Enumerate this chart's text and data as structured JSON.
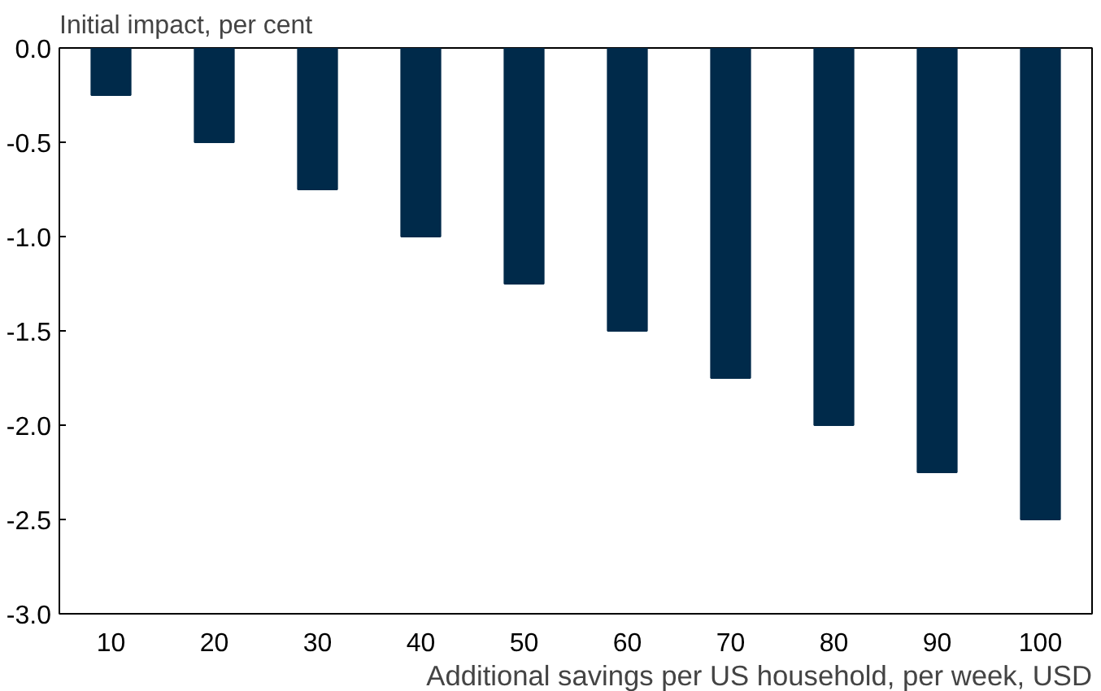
{
  "chart_data": {
    "type": "bar",
    "title": "Initial impact, per cent",
    "xlabel": "Additional savings per US household, per week, USD",
    "categories": [
      "10",
      "20",
      "30",
      "40",
      "50",
      "60",
      "70",
      "80",
      "90",
      "100"
    ],
    "values": [
      -0.25,
      -0.5,
      -0.75,
      -1.0,
      -1.25,
      -1.5,
      -1.75,
      -2.0,
      -2.25,
      -2.5
    ],
    "color": "#002a4a",
    "ylim": [
      -3,
      0
    ],
    "yticks": [
      {
        "value": -3,
        "label": "-3.0"
      },
      {
        "value": -2.5,
        "label": "-2.5"
      },
      {
        "value": -2,
        "label": "-2.0"
      },
      {
        "value": -1.5,
        "label": "-1.5"
      },
      {
        "value": -1,
        "label": "-1.0"
      },
      {
        "value": -0.5,
        "label": "-0.5"
      },
      {
        "value": 0,
        "label": "0.0"
      }
    ],
    "grid": false
  }
}
